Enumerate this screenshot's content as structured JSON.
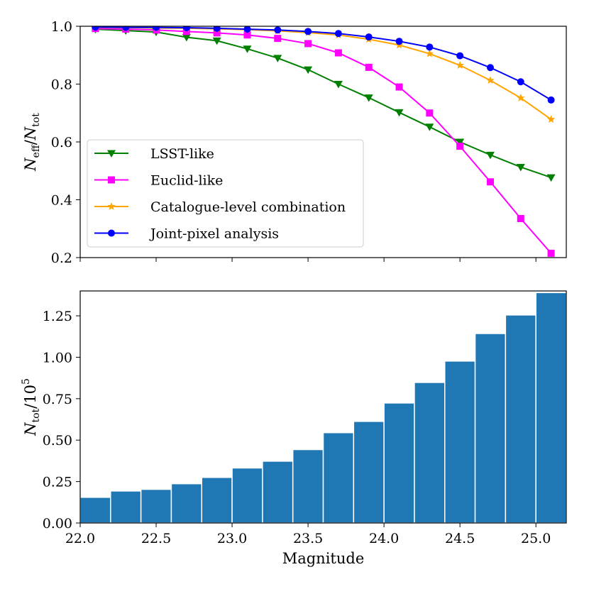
{
  "chart_data": [
    {
      "type": "line",
      "ylabel": "N_eff/N_tot",
      "ylim": [
        0.2,
        1.0
      ],
      "xlim": [
        22.0,
        25.2
      ],
      "yticks": [
        "0.2",
        "0.4",
        "0.6",
        "0.8",
        "1.0"
      ],
      "x": [
        22.1,
        22.3,
        22.5,
        22.7,
        22.9,
        23.1,
        23.3,
        23.5,
        23.7,
        23.9,
        24.1,
        24.3,
        24.5,
        24.7,
        24.9,
        25.1
      ],
      "legend_position": "center-left",
      "series": [
        {
          "name": "LSST-like",
          "color": "#008000",
          "marker": "triangle-down",
          "values": [
            0.99,
            0.985,
            0.98,
            0.962,
            0.95,
            0.922,
            0.89,
            0.85,
            0.8,
            0.753,
            0.702,
            0.652,
            0.6,
            0.555,
            0.513,
            0.477
          ]
        },
        {
          "name": "Euclid-like",
          "color": "#ff00ff",
          "marker": "square",
          "values": [
            0.992,
            0.99,
            0.987,
            0.982,
            0.977,
            0.97,
            0.958,
            0.94,
            0.908,
            0.858,
            0.79,
            0.7,
            0.585,
            0.462,
            0.335,
            0.215
          ]
        },
        {
          "name": "Catalogue-level combination",
          "color": "#ffa500",
          "marker": "star",
          "values": [
            0.996,
            0.995,
            0.994,
            0.993,
            0.991,
            0.988,
            0.984,
            0.978,
            0.97,
            0.955,
            0.935,
            0.905,
            0.865,
            0.813,
            0.752,
            0.678
          ]
        },
        {
          "name": "Joint-pixel analysis",
          "color": "#0000ff",
          "marker": "circle",
          "values": [
            0.997,
            0.996,
            0.996,
            0.995,
            0.993,
            0.99,
            0.987,
            0.982,
            0.975,
            0.963,
            0.948,
            0.928,
            0.898,
            0.857,
            0.808,
            0.745
          ]
        }
      ]
    },
    {
      "type": "bar",
      "xlabel": "Magnitude",
      "ylabel": "N_tot/10^5",
      "ylim": [
        0.0,
        1.4
      ],
      "xlim": [
        22.0,
        25.2
      ],
      "yticks": [
        "0.00",
        "0.25",
        "0.50",
        "0.75",
        "1.00",
        "1.25"
      ],
      "xticks": [
        "22.0",
        "22.5",
        "23.0",
        "23.5",
        "24.0",
        "24.5",
        "25.0"
      ],
      "bin_edges": [
        22.0,
        22.2,
        22.4,
        22.6,
        22.8,
        23.0,
        23.2,
        23.4,
        23.6,
        23.8,
        24.0,
        24.2,
        24.4,
        24.6,
        24.8,
        25.0,
        25.2
      ],
      "values": [
        0.155,
        0.193,
        0.203,
        0.237,
        0.275,
        0.332,
        0.373,
        0.443,
        0.545,
        0.613,
        0.724,
        0.848,
        0.977,
        1.143,
        1.255,
        1.39
      ],
      "color": "#1f77b4"
    }
  ]
}
